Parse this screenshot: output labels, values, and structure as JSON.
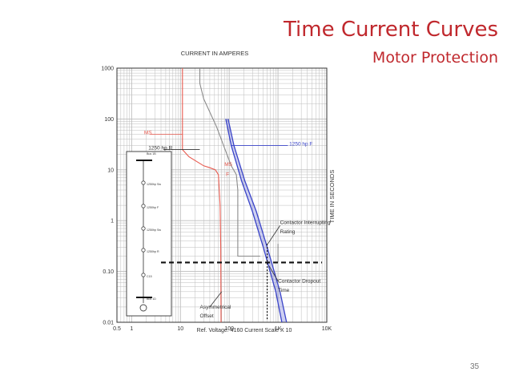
{
  "slide": {
    "title": "Time Current Curves",
    "subtitle": "Motor Protection",
    "page_number": "35"
  },
  "chart_data": {
    "type": "line",
    "title": "CURRENT IN AMPERES",
    "xlabel": "Ref. Voltage: 4160 Current Scale X 10",
    "ylabel": "TIME IN SECONDS",
    "x_scale": "log",
    "y_scale": "log",
    "xlim": [
      0.5,
      10000
    ],
    "ylim": [
      0.01,
      1000
    ],
    "x_ticks": [
      {
        "v": 0.5,
        "label": "0.5"
      },
      {
        "v": 1,
        "label": "1"
      },
      {
        "v": 10,
        "label": "10"
      },
      {
        "v": 100,
        "label": "100"
      },
      {
        "v": 1000,
        "label": "1K"
      },
      {
        "v": 10000,
        "label": "10K"
      }
    ],
    "y_ticks": [
      {
        "v": 1000,
        "label": "1000"
      },
      {
        "v": 100,
        "label": "100"
      },
      {
        "v": 10,
        "label": "10"
      },
      {
        "v": 1,
        "label": "1"
      },
      {
        "v": 0.1,
        "label": "0.10"
      },
      {
        "v": 0.01,
        "label": "0.01"
      }
    ],
    "grid": true,
    "colors": {
      "grid": "#bdbdbd",
      "ms": "#e85a4f",
      "motor": "#8a8a8a",
      "fuse": "#3a44c8",
      "dashed": "#111111",
      "annot": "#333333"
    },
    "series": [
      {
        "name": "MS",
        "color": "#e85a4f",
        "points": [
          [
            11,
            1000
          ],
          [
            11,
            25
          ],
          [
            15,
            18
          ],
          [
            30,
            12
          ],
          [
            40,
            11
          ],
          [
            52,
            10
          ],
          [
            60,
            8
          ],
          [
            65,
            2
          ],
          [
            67,
            0.3
          ],
          [
            68,
            0.01
          ]
        ]
      },
      {
        "name": "1250 hp R",
        "color": "#8a8a8a",
        "points": [
          [
            25,
            1000
          ],
          [
            25,
            500
          ],
          [
            30,
            250
          ],
          [
            55,
            70
          ],
          [
            110,
            12
          ],
          [
            140,
            8
          ],
          [
            150,
            4
          ],
          [
            150,
            0.2
          ],
          [
            430,
            0.2
          ]
        ]
      },
      {
        "name": "1250 hp F",
        "color": "#3a44c8",
        "points": [
          [
            85,
            100
          ],
          [
            110,
            30
          ],
          [
            180,
            6
          ],
          [
            300,
            1.5
          ],
          [
            500,
            0.3
          ],
          [
            900,
            0.04
          ],
          [
            1200,
            0.01
          ]
        ]
      },
      {
        "name": "1250 hp F",
        "color": "#3a44c8",
        "points": [
          [
            95,
            100
          ],
          [
            125,
            30
          ],
          [
            210,
            6
          ],
          [
            360,
            1.5
          ],
          [
            600,
            0.3
          ],
          [
            1100,
            0.04
          ],
          [
            1500,
            0.01
          ]
        ]
      }
    ],
    "annotations": [
      {
        "text": "MS",
        "color": "#e85a4f",
        "x": 1.8,
        "y": 50
      },
      {
        "text": "1250 hp R",
        "color": "#333333",
        "x": 2.2,
        "y": 25
      },
      {
        "text": "1250 hp F",
        "color": "#3a44c8",
        "x": 1700,
        "y": 30
      },
      {
        "text": "MS",
        "color": "#e85a4f",
        "x": 80,
        "y": 12
      },
      {
        "text": "F",
        "color": "#e85a4f",
        "x": 86,
        "y": 7.5
      },
      {
        "text": "Contactor  Interrupting",
        "color": "#333333",
        "x": 1100,
        "y": 0.85
      },
      {
        "text": "Rating",
        "color": "#333333",
        "x": 1100,
        "y": 0.56
      },
      {
        "text": "Contactor  Dropout",
        "color": "#333333",
        "x": 1000,
        "y": 0.06
      },
      {
        "text": "Time",
        "color": "#333333",
        "x": 1000,
        "y": 0.04
      },
      {
        "text": "Asymmetrical",
        "color": "#333333",
        "x": 25,
        "y": 0.0185
      },
      {
        "text": "Offset",
        "color": "#333333",
        "x": 25,
        "y": 0.0125
      }
    ],
    "one_line_labels": [
      "Bus 1B",
      "1250hp Sw",
      "1250hp F",
      "1250hp Sw",
      "1250hp R",
      "C15",
      "Bus 1D"
    ]
  }
}
